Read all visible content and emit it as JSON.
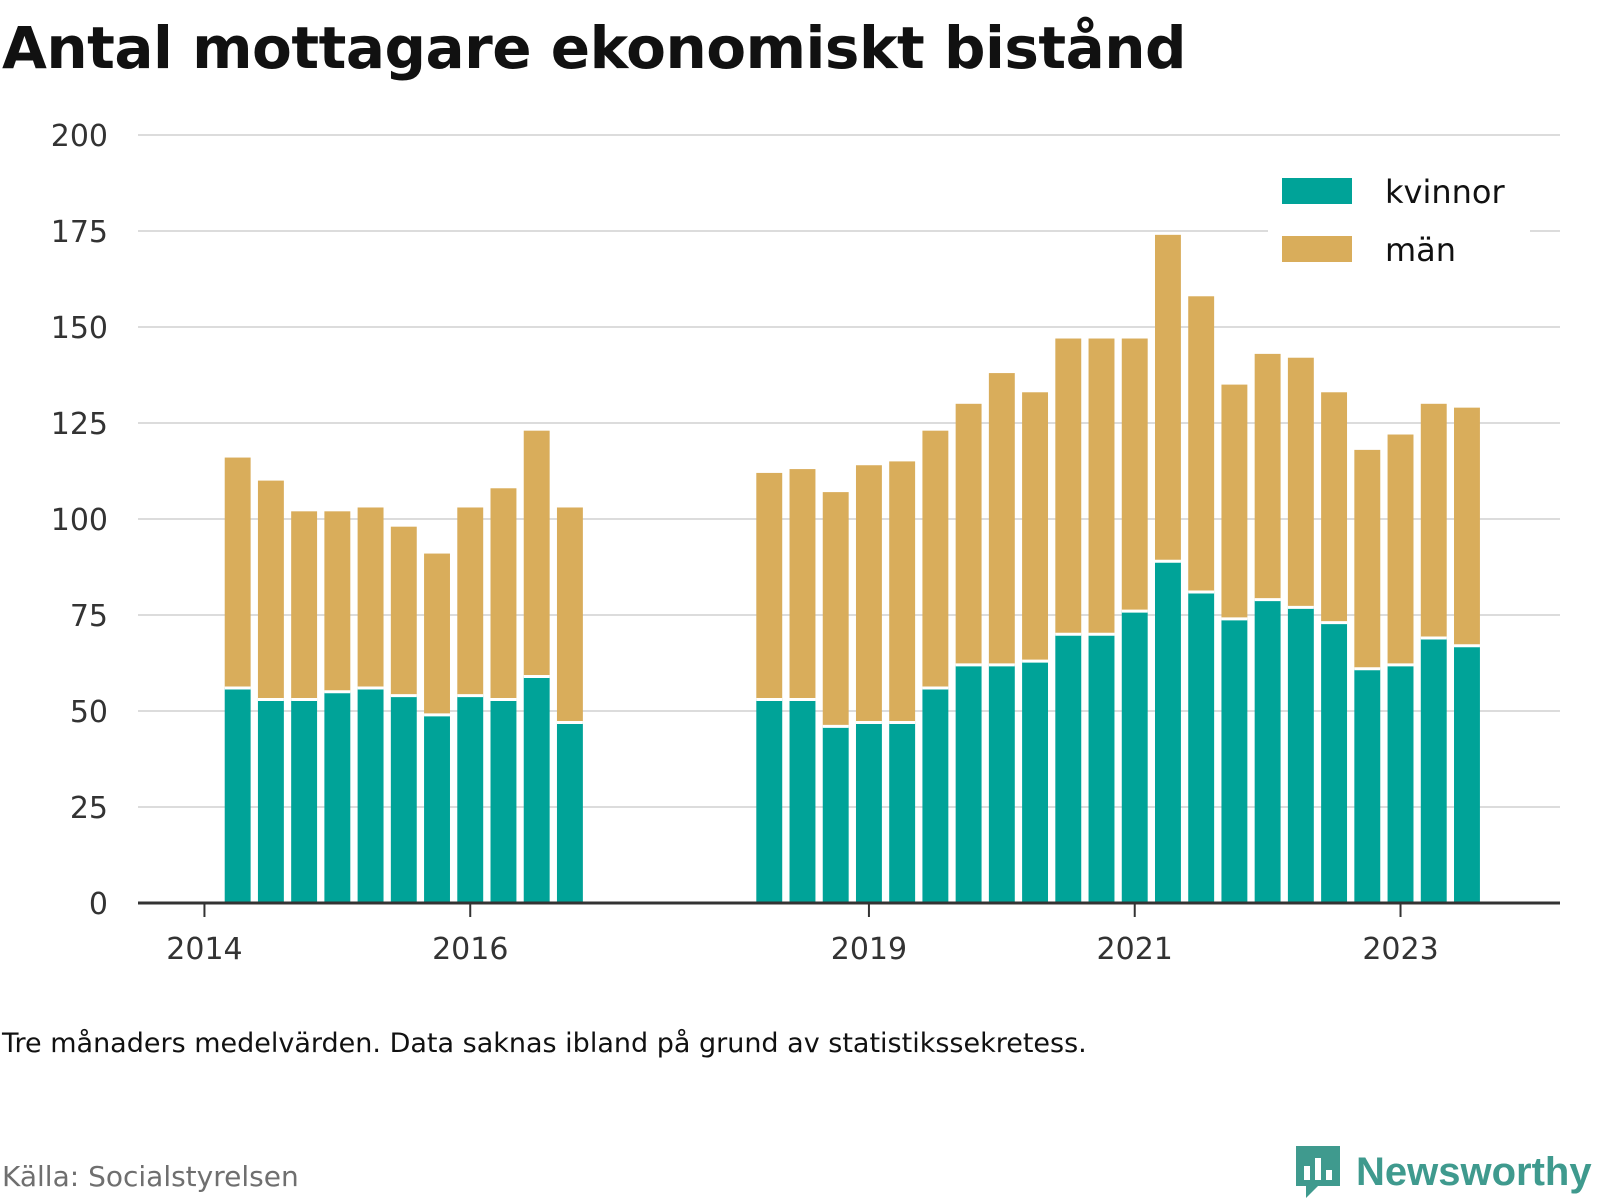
{
  "title": "Antal mottagare ekonomiskt bistånd",
  "note": "Tre månaders medelvärden. Data saknas ibland på grund av statistikssekretess.",
  "source": "Källa: Socialstyrelsen",
  "brand": {
    "name": "Newsworthy",
    "icon": "newsworthy-chat-chart-icon"
  },
  "colors": {
    "kvinnor": "#00a398",
    "man": "#d9ad5b",
    "grid": "#dcdcdc",
    "axis": "#333333"
  },
  "chart_data": {
    "type": "bar",
    "stacked": true,
    "ylim": [
      0,
      200
    ],
    "yticks": [
      "0",
      "25",
      "50",
      "75",
      "100",
      "125",
      "150",
      "175",
      "200"
    ],
    "xticks": [
      {
        "label": "2014",
        "x": 2014.0
      },
      {
        "label": "2016",
        "x": 2016.0
      },
      {
        "label": "2019",
        "x": 2019.0
      },
      {
        "label": "2021",
        "x": 2021.0
      },
      {
        "label": "2023",
        "x": 2023.0
      }
    ],
    "xlim": [
      2013.5,
      2024.2
    ],
    "legend_position": "top-right",
    "series": [
      {
        "name": "kvinnor",
        "key": "kvinnor"
      },
      {
        "name": "män",
        "key": "man"
      }
    ],
    "x": [
      2014.25,
      2014.5,
      2014.75,
      2015.0,
      2015.25,
      2015.5,
      2015.75,
      2016.0,
      2016.25,
      2016.5,
      2016.75,
      2018.25,
      2018.5,
      2018.75,
      2019.0,
      2019.25,
      2019.5,
      2019.75,
      2020.0,
      2020.25,
      2020.5,
      2020.75,
      2021.0,
      2021.25,
      2021.5,
      2021.75,
      2022.0,
      2022.25,
      2022.5,
      2022.75,
      2023.0,
      2023.25,
      2023.5
    ],
    "kvinnor": [
      56,
      53,
      53,
      55,
      56,
      54,
      49,
      54,
      53,
      59,
      47,
      53,
      53,
      46,
      47,
      47,
      56,
      62,
      62,
      63,
      70,
      70,
      76,
      89,
      81,
      74,
      79,
      77,
      73,
      61,
      62,
      69,
      67
    ],
    "man": [
      60,
      57,
      49,
      47,
      47,
      44,
      42,
      49,
      55,
      64,
      56,
      59,
      60,
      61,
      67,
      68,
      67,
      68,
      76,
      70,
      77,
      77,
      71,
      85,
      77,
      61,
      64,
      65,
      60,
      57,
      60,
      61,
      62
    ]
  }
}
